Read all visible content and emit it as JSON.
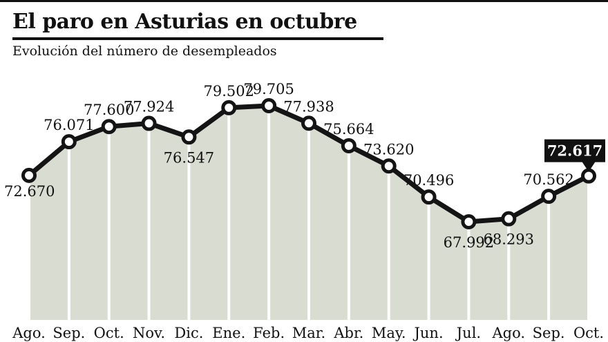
{
  "header": {
    "title": "El paro en Asturias en octubre",
    "subtitle": "Evolución del número de desempleados"
  },
  "colors": {
    "area_fill": "#d9dcd0",
    "line": "#141414",
    "marker_fill": "#ffffff",
    "gridline": "#ffffff",
    "text": "#111111",
    "badge_bg": "#111111",
    "badge_text": "#ffffff"
  },
  "chart_data": {
    "type": "area",
    "title": "El paro en Asturias en octubre",
    "subtitle": "Evolución del número de desempleados",
    "x": [
      "Ago.",
      "Sep.",
      "Oct.",
      "Nov.",
      "Dic.",
      "Ene.",
      "Feb.",
      "Mar.",
      "Abr.",
      "May.",
      "Jun.",
      "Jul.",
      "Ago.",
      "Sep.",
      "Oct."
    ],
    "values": [
      72670,
      76071,
      77600,
      77924,
      76547,
      79502,
      79705,
      77938,
      75664,
      73620,
      70496,
      67992,
      68293,
      70562,
      72617
    ],
    "value_labels": [
      "72.670",
      "76.071",
      "77.600",
      "77.924",
      "76.547",
      "79.502",
      "79.705",
      "77.938",
      "75.664",
      "73.620",
      "70.496",
      "67.992",
      "68.293",
      "70.562",
      "72.617"
    ],
    "label_positions": [
      "below-left",
      "above",
      "above",
      "above",
      "below",
      "above",
      "above",
      "above",
      "above",
      "above",
      "above",
      "below",
      "below",
      "above",
      "badge"
    ],
    "highlighted_value": "72.617",
    "ylim": [
      67000,
      80000
    ],
    "grid": false,
    "legend": false
  }
}
